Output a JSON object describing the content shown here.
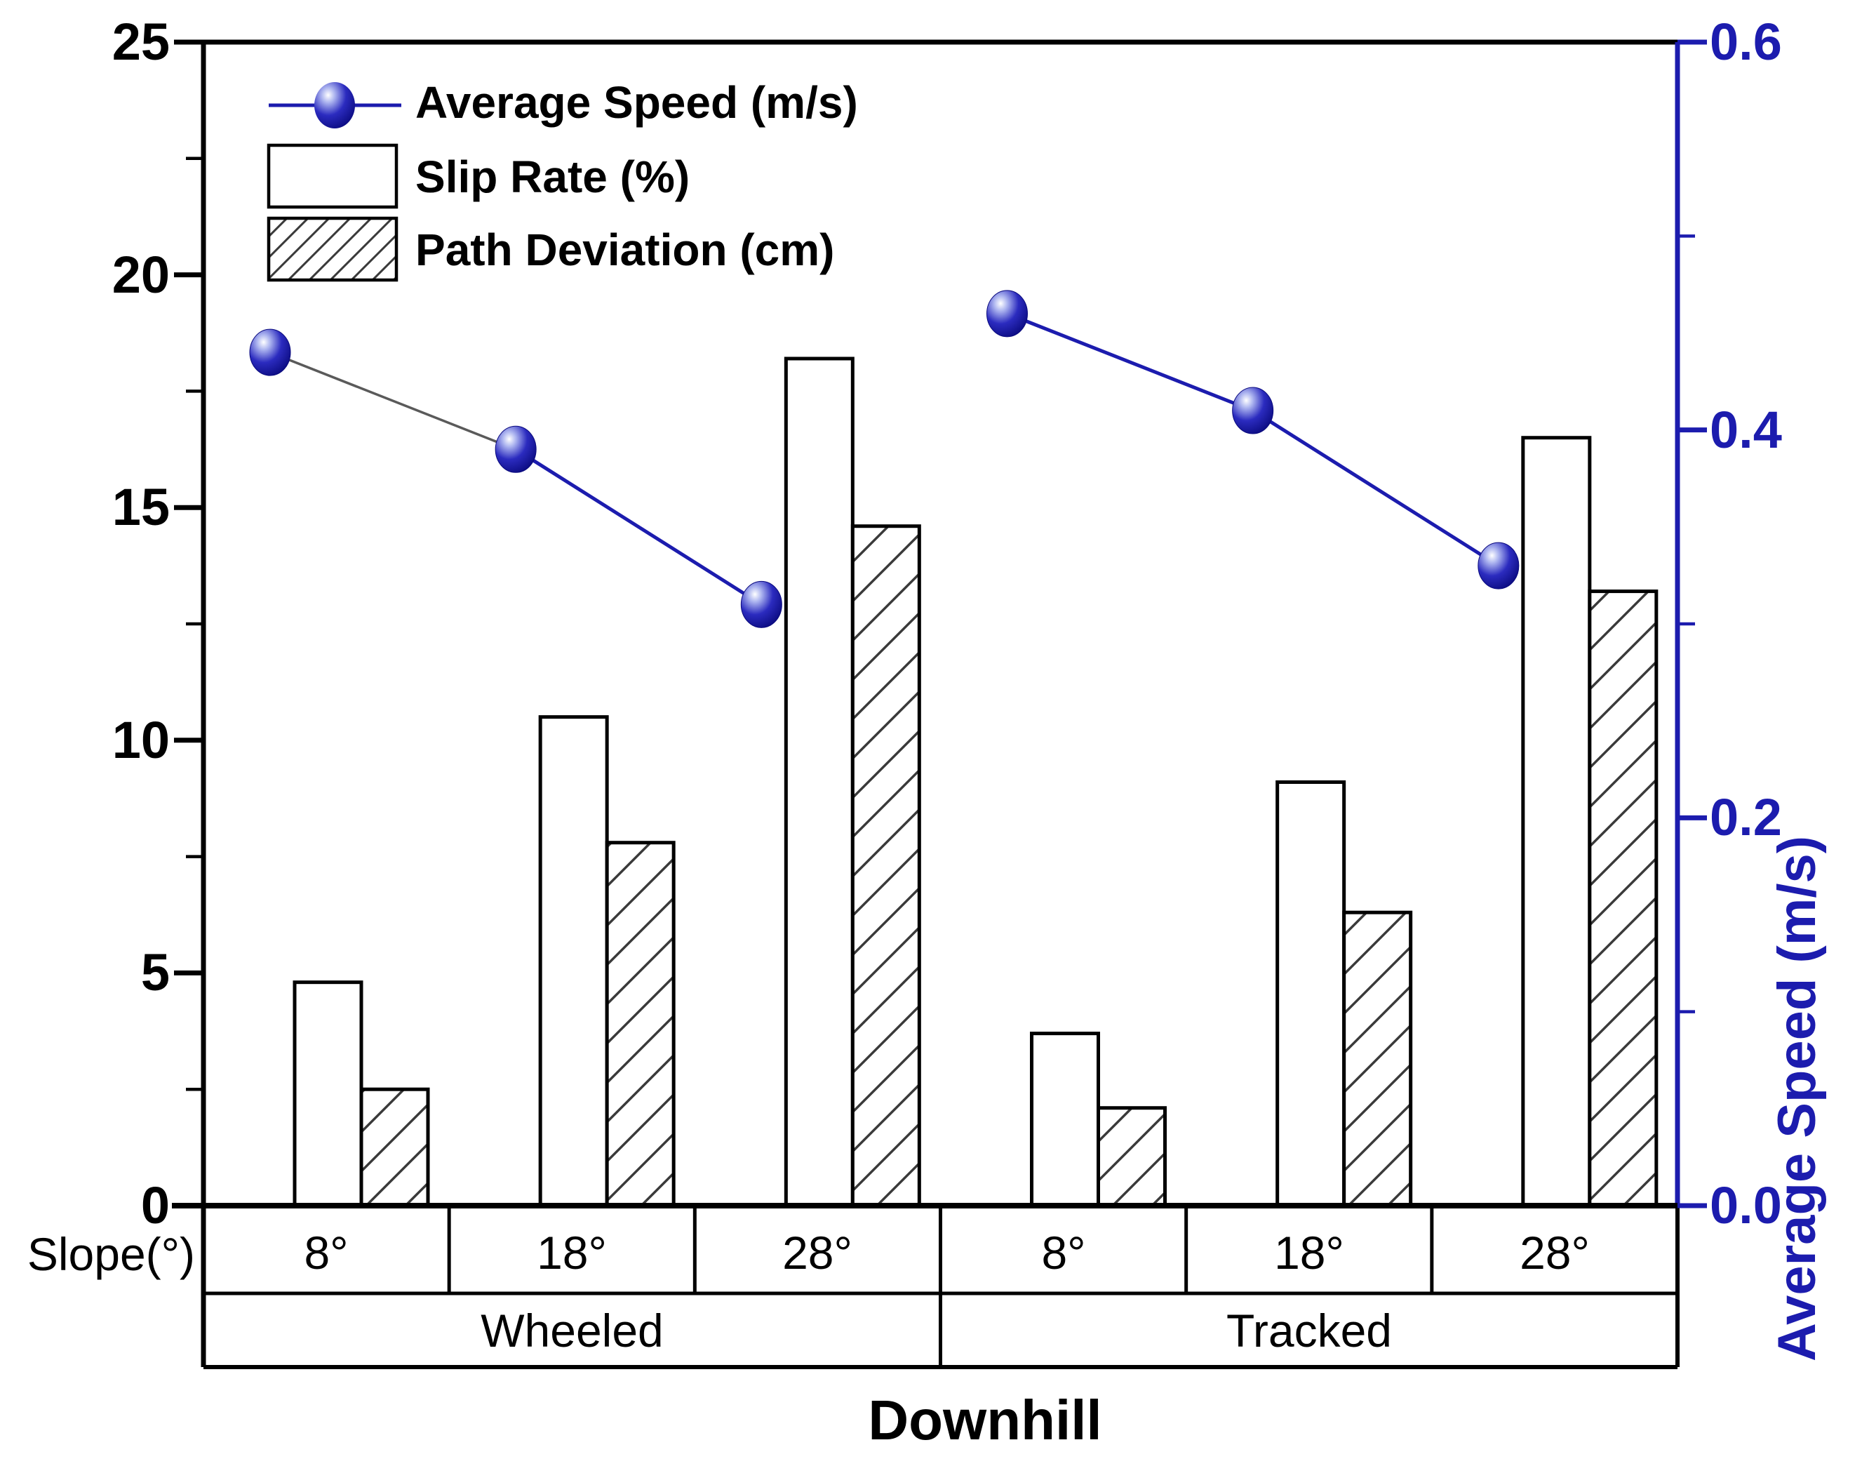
{
  "chart_data": {
    "type": "bar+line dual-axis",
    "title": "Downhill",
    "x_table": {
      "slope_row_label": "Slope(°)",
      "slopes": [
        "8°",
        "18°",
        "28°",
        "8°",
        "18°",
        "28°"
      ],
      "groups": [
        {
          "label": "Wheeled",
          "span": 3
        },
        {
          "label": "Tracked",
          "span": 3
        }
      ]
    },
    "left_axis": {
      "min": 0,
      "max": 25,
      "major_tick_step": 5,
      "minor_tick_step": 2.5,
      "tick_labels": [
        "25",
        "20",
        "15",
        "10",
        "5",
        "0"
      ]
    },
    "right_axis": {
      "label": "Average Speed (m/s)",
      "min": 0,
      "max": 0.6,
      "major_tick_step": 0.2,
      "minor_tick_step": 0.1,
      "tick_labels": [
        "0.6",
        "0.4",
        "0.2",
        "0.0"
      ],
      "color": "#1c1cae"
    },
    "series": [
      {
        "name": "Average Speed (m/s)",
        "type": "line",
        "axis": "right",
        "marker": "sphere",
        "color": "#1c1cae",
        "first_segment_color": "#5a5a5a",
        "line_break_between_groups": true,
        "values": [
          0.44,
          0.39,
          0.31,
          0.46,
          0.41,
          0.33
        ]
      },
      {
        "name": "Slip Rate (%)",
        "type": "bar",
        "axis": "left",
        "fill": "white",
        "values": [
          4.8,
          10.5,
          18.2,
          3.7,
          9.1,
          16.5
        ]
      },
      {
        "name": "Path Deviation (cm)",
        "type": "bar",
        "axis": "left",
        "fill": "hatched",
        "values": [
          2.5,
          7.8,
          14.6,
          2.1,
          6.3,
          13.2
        ]
      }
    ],
    "legend_position": "top-left inside plot"
  },
  "colors": {
    "accent_blue": "#1c1cae",
    "axis_black": "#000000",
    "gray_first_segment": "#5a5a5a",
    "hatch_line": "#3a3a3a",
    "background": "#ffffff"
  }
}
